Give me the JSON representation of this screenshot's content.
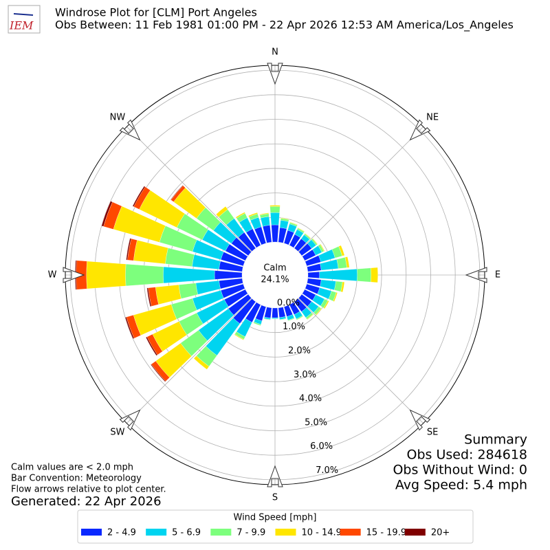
{
  "chart_data": {
    "type": "windrose",
    "logo_text": "IEM",
    "title": "Windrose Plot for [CLM] Port Angeles",
    "subtitle": "Obs Between: 11 Feb 1981 01:00 PM - 22 Apr 2026 12:53 AM America/Los_Angeles",
    "compass_labels": [
      "N",
      "NE",
      "E",
      "SE",
      "S",
      "SW",
      "W",
      "NW"
    ],
    "calm_label": "Calm",
    "calm_text": "24.1%",
    "directions": [
      0,
      10,
      20,
      30,
      40,
      50,
      60,
      70,
      80,
      90,
      100,
      110,
      120,
      130,
      140,
      150,
      160,
      170,
      180,
      190,
      200,
      210,
      220,
      230,
      240,
      250,
      260,
      270,
      280,
      290,
      300,
      310,
      320,
      330,
      340,
      350
    ],
    "rlim": [
      0,
      7.2
    ],
    "rticks": [
      {
        "value": 0,
        "label": "0.0%"
      },
      {
        "value": 1,
        "label": "1.0%"
      },
      {
        "value": 2,
        "label": "2.0%"
      },
      {
        "value": 3,
        "label": "3.0%"
      },
      {
        "value": 4,
        "label": "4.0%"
      },
      {
        "value": 5,
        "label": "5.0%"
      },
      {
        "value": 6,
        "label": "6.0%"
      },
      {
        "value": 7,
        "label": "7.0%"
      }
    ],
    "grid": true,
    "legend_title": "Wind Speed [mph]",
    "series": [
      {
        "name": "2 - 4.9",
        "color": "#0a28ff",
        "values": [
          0.7,
          0.6,
          0.55,
          0.5,
          0.48,
          0.5,
          0.5,
          0.6,
          0.55,
          0.47,
          0.55,
          0.55,
          0.5,
          0.5,
          0.5,
          0.45,
          0.42,
          0.4,
          0.4,
          0.42,
          0.6,
          0.8,
          1.1,
          1.0,
          0.95,
          0.95,
          0.95,
          1.12,
          0.95,
          0.95,
          0.9,
          0.85,
          0.8,
          0.75,
          0.7,
          0.7
        ]
      },
      {
        "name": "5 - 6.9",
        "color": "#00d4f0",
        "values": [
          0.5,
          0.3,
          0.27,
          0.22,
          0.2,
          0.22,
          0.28,
          0.6,
          0.7,
          1.54,
          0.6,
          0.5,
          0.4,
          0.35,
          0.3,
          0.2,
          0.15,
          0.08,
          0.04,
          0.06,
          0.15,
          0.65,
          1.6,
          1.5,
          1.25,
          1.2,
          0.95,
          2.09,
          1.1,
          1.2,
          1.05,
          0.9,
          0.7,
          0.5,
          0.4,
          0.35
        ]
      },
      {
        "name": "7 - 9.9",
        "color": "#7dff7d",
        "values": [
          0.25,
          0.08,
          0.06,
          0.06,
          0.05,
          0.06,
          0.09,
          0.3,
          0.35,
          0.56,
          0.27,
          0.2,
          0.15,
          0.12,
          0.08,
          0.04,
          0.03,
          0.02,
          0.01,
          0.02,
          0.05,
          0.12,
          0.55,
          0.9,
          0.8,
          0.9,
          0.7,
          1.54,
          1.1,
          1.4,
          1.15,
          0.85,
          0.45,
          0.2,
          0.15,
          0.12
        ]
      },
      {
        "name": "10 - 14.9",
        "color": "#ffe600",
        "values": [
          0.05,
          0.02,
          0.02,
          0.02,
          0.02,
          0.02,
          0.03,
          0.1,
          0.1,
          0.28,
          0.08,
          0.05,
          0.05,
          0.03,
          0.02,
          0.01,
          0,
          0,
          0,
          0,
          0,
          0.03,
          0.15,
          1.25,
          1.2,
          1.6,
          0.95,
          1.59,
          1.3,
          1.95,
          1.7,
          1.15,
          0.15,
          0.05,
          0.05,
          0.03
        ]
      },
      {
        "name": "15 - 19.9",
        "color": "#ff4800",
        "values": [
          0,
          0,
          0,
          0,
          0,
          0,
          0,
          0,
          0,
          0,
          0,
          0,
          0,
          0,
          0,
          0,
          0,
          0,
          0,
          0,
          0,
          0,
          0,
          0.22,
          0.25,
          0.3,
          0.3,
          0.42,
          0.25,
          0.42,
          0.25,
          0.13,
          0,
          0,
          0,
          0
        ]
      },
      {
        "name": "20+",
        "color": "#800000",
        "values": [
          0,
          0,
          0,
          0,
          0,
          0,
          0,
          0,
          0,
          0,
          0,
          0,
          0,
          0,
          0,
          0,
          0,
          0,
          0,
          0,
          0,
          0,
          0,
          0.03,
          0.05,
          0.05,
          0.05,
          0.04,
          0.05,
          0.08,
          0.05,
          0.02,
          0,
          0,
          0,
          0
        ]
      }
    ],
    "notes": [
      "Calm values are < 2.0 mph",
      "Bar Convention: Meteorology",
      "Flow arrows relative to plot center."
    ],
    "generated": "Generated: 22 Apr 2026",
    "summary": [
      "Summary",
      "Obs Used: 284618",
      "Obs Without Wind: 0",
      "Avg Speed: 5.4 mph"
    ]
  }
}
